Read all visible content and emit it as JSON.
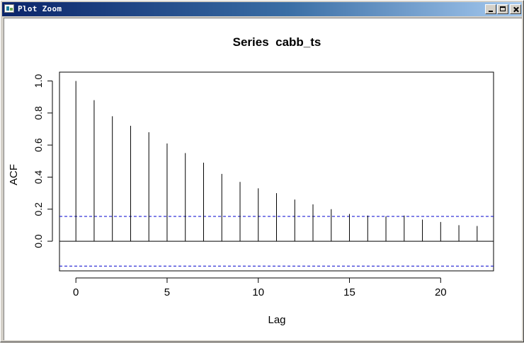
{
  "window": {
    "title": "Plot Zoom",
    "buttons": {
      "minimize": "minimize",
      "maximize": "maximize",
      "close": "close"
    }
  },
  "chart_data": {
    "type": "bar",
    "title": "Series  cabb_ts",
    "xlabel": "Lag",
    "ylabel": "ACF",
    "x": [
      0,
      1,
      2,
      3,
      4,
      5,
      6,
      7,
      8,
      9,
      10,
      11,
      12,
      13,
      14,
      15,
      16,
      17,
      18,
      19,
      20,
      21,
      22
    ],
    "values": [
      1.0,
      0.88,
      0.78,
      0.72,
      0.68,
      0.61,
      0.55,
      0.49,
      0.42,
      0.37,
      0.33,
      0.3,
      0.26,
      0.23,
      0.2,
      0.17,
      0.16,
      0.155,
      0.16,
      0.135,
      0.12,
      0.1,
      0.095
    ],
    "confidence_bound": 0.155,
    "xlim": [
      -0.9,
      22.9
    ],
    "ylim": [
      -0.185,
      1.055
    ],
    "xticks": [
      "0",
      "5",
      "10",
      "15",
      "20"
    ],
    "yticks": [
      "0.0",
      "0.2",
      "0.4",
      "0.6",
      "0.8",
      "1.0"
    ],
    "colors": {
      "bars": "#000000",
      "bounds": "#0000cc",
      "zero_line": "#000000"
    },
    "grid": false
  }
}
